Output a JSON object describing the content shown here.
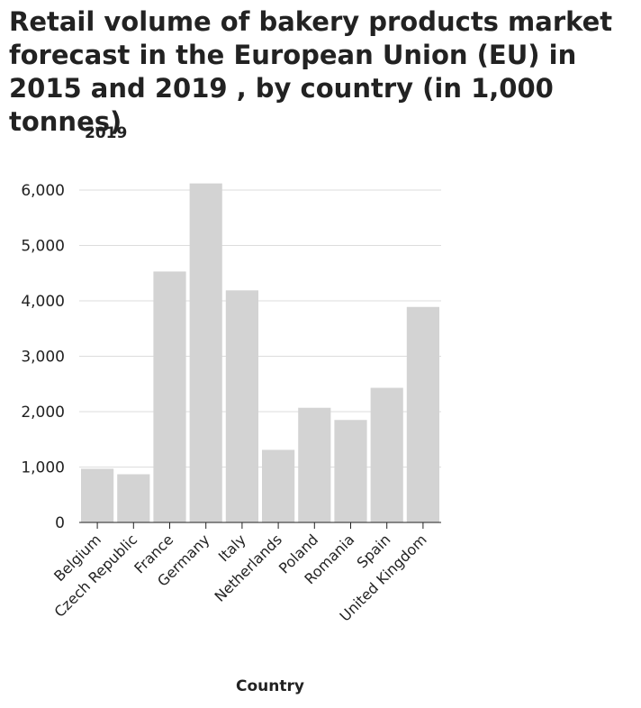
{
  "chart_data": {
    "type": "bar",
    "title": "Retail volume of bakery products market forecast in the European Union (EU) in 2015 and 2019 , by country (in 1,000 tonnes)",
    "series_label": "2019",
    "xlabel": "Country",
    "ylabel": "",
    "categories": [
      "Belgium",
      "Czech Republic",
      "France",
      "Germany",
      "Italy",
      "Netherlands",
      "Poland",
      "Romania",
      "Spain",
      "United Kingdom"
    ],
    "values": [
      970,
      870,
      4530,
      6120,
      4190,
      1310,
      2070,
      1850,
      2430,
      3890
    ],
    "yticks": [
      0,
      1000,
      2000,
      3000,
      4000,
      5000,
      6000
    ],
    "ytick_labels": [
      "0",
      "1,000",
      "2,000",
      "3,000",
      "4,000",
      "5,000",
      "6,000"
    ],
    "ylim": [
      0,
      6000
    ],
    "grid": true,
    "colors": {
      "bar": "#d3d3d3",
      "grid": "#dddddd",
      "axis": "#222222",
      "text": "#222222"
    }
  }
}
